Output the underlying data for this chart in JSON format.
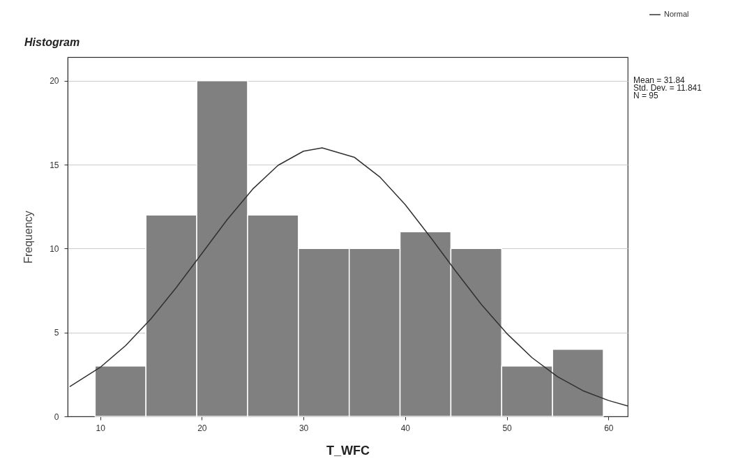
{
  "chart_data": {
    "type": "histogram",
    "title": "Histogram",
    "xlabel": "T_WFC",
    "ylabel": "Frequency",
    "bins": [
      9.5,
      14.5,
      19.5,
      24.5,
      29.5,
      34.5,
      39.5,
      44.5,
      49.5,
      54.5,
      59.5
    ],
    "series": [
      {
        "color": "#808080",
        "values": [
          3,
          12,
          20,
          12,
          10,
          10,
          11,
          10,
          3,
          4
        ]
      },
      {
        "type": "line",
        "name": "Normal",
        "color": "#303030",
        "x": [
          7,
          10,
          12.5,
          15,
          17.5,
          20,
          22.5,
          25,
          27.5,
          30,
          31.84,
          35,
          37.5,
          40,
          42.5,
          45,
          47.5,
          50,
          52.5,
          55,
          57.5,
          60,
          61.9
        ],
        "values": [
          1.77,
          2.92,
          4.22,
          5.82,
          7.69,
          9.7,
          11.73,
          13.54,
          14.96,
          15.8,
          16,
          15.44,
          14.27,
          12.62,
          10.67,
          8.63,
          6.67,
          4.94,
          3.49,
          2.36,
          1.53,
          0.95,
          0.62
        ]
      }
    ],
    "annotations": [
      "Mean = 31.84\nStd. Dev. = 11.841\nN = 95"
    ],
    "xlim": [
      6.8,
      61.9
    ],
    "ylim": [
      0,
      21.4
    ],
    "xticks": [
      10,
      20,
      30,
      40,
      50,
      60
    ],
    "yticks": [
      0,
      5,
      10,
      15,
      20
    ],
    "grid": "y",
    "legend": "top right"
  }
}
